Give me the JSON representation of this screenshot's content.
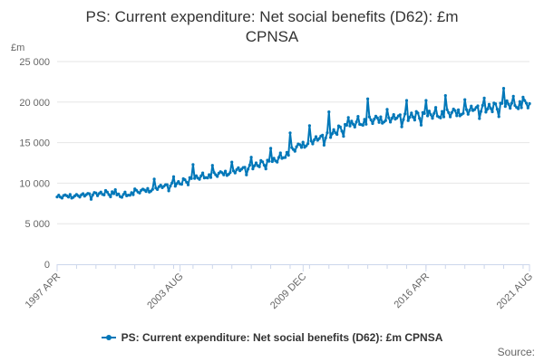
{
  "title_lines": [
    "PS: Current expenditure: Net social benefits (D62): £m",
    "CPNSA"
  ],
  "legend_label": "PS: Current expenditure: Net social benefits (D62): £m CPNSA",
  "credits": "Source:",
  "colors": {
    "series": "#0077b8",
    "grid": "#e6e6e6",
    "axis_text": "#666666",
    "title": "#333333"
  },
  "chart_data": {
    "type": "line",
    "title": "PS: Current expenditure: Net social benefits (D62): £m CPNSA",
    "ylabel": "£m",
    "xlabel": "",
    "ylim": [
      0,
      25000
    ],
    "y_ticks": [
      0,
      5000,
      10000,
      15000,
      20000,
      25000
    ],
    "y_tick_labels": [
      "0",
      "5 000",
      "10 000",
      "15 000",
      "20 000",
      "25 000"
    ],
    "x_range": [
      1997.25,
      2021.58
    ],
    "x_ticks": [
      {
        "x": 1997.25,
        "label": "1997 APR"
      },
      {
        "x": 2003.58,
        "label": "2003 AUG"
      },
      {
        "x": 2009.92,
        "label": "2009 DEC"
      },
      {
        "x": 2016.25,
        "label": "2016 APR"
      },
      {
        "x": 2021.58,
        "label": "2021 AUG"
      }
    ],
    "series": [
      {
        "name": "PS: Current expenditure: Net social benefits (D62): £m CPNSA",
        "frequency": "monthly",
        "start": "1997 APR",
        "end": "2021 AUG",
        "points": [
          [
            1997.25,
            8300
          ],
          [
            1998.0,
            8450
          ],
          [
            1998.5,
            8500
          ],
          [
            1999.0,
            8600
          ],
          [
            1999.5,
            8700
          ],
          [
            2000.0,
            8800
          ],
          [
            2000.5,
            8400
          ],
          [
            2001.0,
            8700
          ],
          [
            2001.5,
            9000
          ],
          [
            2002.0,
            9200
          ],
          [
            2002.5,
            9500
          ],
          [
            2003.0,
            9700
          ],
          [
            2003.58,
            10000
          ],
          [
            2004.0,
            10400
          ],
          [
            2004.5,
            10700
          ],
          [
            2005.0,
            10900
          ],
          [
            2005.5,
            11100
          ],
          [
            2006.0,
            11300
          ],
          [
            2006.5,
            11600
          ],
          [
            2007.0,
            11800
          ],
          [
            2007.5,
            12200
          ],
          [
            2008.0,
            12500
          ],
          [
            2008.5,
            12800
          ],
          [
            2009.0,
            13500
          ],
          [
            2009.5,
            14300
          ],
          [
            2009.92,
            14800
          ],
          [
            2010.5,
            15300
          ],
          [
            2011.0,
            15700
          ],
          [
            2011.5,
            16200
          ],
          [
            2012.0,
            16800
          ],
          [
            2012.5,
            17300
          ],
          [
            2013.0,
            17600
          ],
          [
            2013.5,
            17800
          ],
          [
            2014.0,
            17900
          ],
          [
            2014.5,
            18000
          ],
          [
            2015.0,
            18100
          ],
          [
            2015.5,
            18200
          ],
          [
            2016.0,
            18300
          ],
          [
            2016.25,
            18400
          ],
          [
            2016.75,
            18500
          ],
          [
            2017.25,
            18600
          ],
          [
            2017.75,
            18700
          ],
          [
            2018.25,
            18900
          ],
          [
            2018.75,
            19100
          ],
          [
            2019.25,
            19200
          ],
          [
            2019.75,
            19300
          ],
          [
            2020.25,
            19600
          ],
          [
            2020.75,
            19800
          ],
          [
            2021.25,
            19700
          ],
          [
            2021.58,
            19800
          ]
        ],
        "peaks": [
          [
            1998.25,
            8600
          ],
          [
            1999.25,
            8800
          ],
          [
            2000.25,
            9200
          ],
          [
            2001.25,
            9300
          ],
          [
            2002.25,
            10500
          ],
          [
            2003.25,
            10800
          ],
          [
            2004.25,
            12300
          ],
          [
            2005.25,
            12200
          ],
          [
            2006.25,
            12600
          ],
          [
            2007.25,
            13200
          ],
          [
            2008.25,
            14300
          ],
          [
            2009.25,
            16200
          ],
          [
            2010.25,
            17100
          ],
          [
            2011.25,
            18800
          ],
          [
            2012.25,
            18100
          ],
          [
            2013.25,
            20400
          ],
          [
            2014.25,
            19100
          ],
          [
            2015.25,
            20200
          ],
          [
            2016.25,
            20200
          ],
          [
            2017.25,
            20800
          ],
          [
            2018.25,
            20300
          ],
          [
            2019.25,
            20500
          ],
          [
            2020.25,
            21700
          ],
          [
            2021.25,
            20600
          ]
        ]
      }
    ]
  }
}
